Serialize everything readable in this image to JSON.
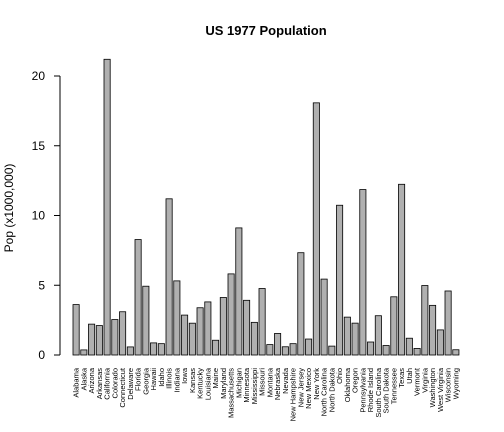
{
  "chart_data": {
    "type": "bar",
    "title": "US 1977 Population",
    "xlabel": "",
    "ylabel": "Pop (x1000,000)",
    "ylim": [
      0,
      22
    ],
    "yticks": [
      0,
      5,
      10,
      15,
      20
    ],
    "grid": false,
    "bar_color": "#b0b0b0",
    "categories": [
      "Alabama",
      "Alaska",
      "Arizona",
      "Arkansas",
      "California",
      "Colorado",
      "Connecticut",
      "Delaware",
      "Florida",
      "Georgia",
      "Hawaii",
      "Idaho",
      "Illinois",
      "Indiana",
      "Iowa",
      "Kansas",
      "Kentucky",
      "Louisiana",
      "Maine",
      "Maryland",
      "Massachusetts",
      "Michigan",
      "Minnesota",
      "Mississippi",
      "Missouri",
      "Montana",
      "Nebraska",
      "Nevada",
      "New Hampshire",
      "New Jersey",
      "New Mexico",
      "New York",
      "North Carolina",
      "North Dakota",
      "Ohio",
      "Oklahoma",
      "Oregon",
      "Pennsylvania",
      "Rhode Island",
      "South Carolina",
      "South Dakota",
      "Tennessee",
      "Texas",
      "Utah",
      "Vermont",
      "Virginia",
      "Washington",
      "West Virginia",
      "Wisconsin",
      "Wyoming"
    ],
    "values": [
      3.615,
      0.365,
      2.212,
      2.11,
      21.198,
      2.541,
      3.1,
      0.579,
      8.277,
      4.931,
      0.868,
      0.813,
      11.197,
      5.313,
      2.861,
      2.28,
      3.387,
      3.806,
      1.058,
      4.122,
      5.814,
      9.111,
      3.921,
      2.341,
      4.767,
      0.746,
      1.544,
      0.59,
      0.812,
      7.333,
      1.144,
      18.076,
      5.441,
      0.637,
      10.735,
      2.715,
      2.284,
      11.86,
      0.931,
      2.816,
      0.681,
      4.173,
      12.237,
      1.203,
      0.472,
      4.981,
      3.559,
      1.799,
      4.589,
      0.376
    ]
  }
}
